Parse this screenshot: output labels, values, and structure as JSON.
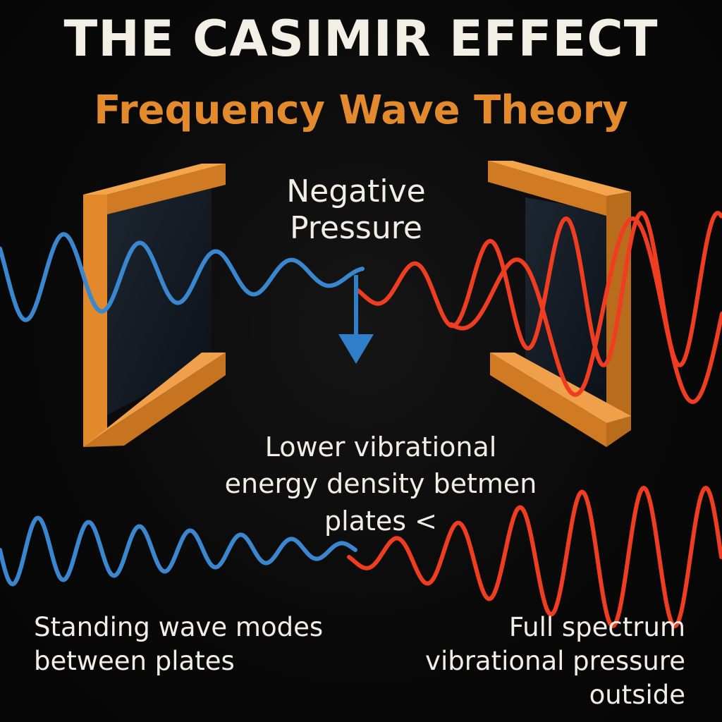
{
  "title": "THE CASIMIR EFFECT",
  "subtitle": "Frequency Wave Theory",
  "labels": {
    "negative_pressure": [
      "Negative",
      "Pressure"
    ],
    "energy_density": [
      "Lower vibrational",
      "energy density betmen",
      "plates <"
    ],
    "standing_waves": [
      "Standing wave modes",
      "between plates"
    ],
    "full_spectrum": [
      "Full spectrum",
      "vibrational pressure",
      "outside"
    ]
  },
  "colors": {
    "background": "#080808",
    "plate": "#e08a2a",
    "inner_wave": "#3a87d0",
    "outer_wave": "#ef3d22",
    "arrow": "#2f80c8",
    "title": "#f4efe4",
    "subtitle": "#e38a2c"
  },
  "icons": {
    "arrow": "down-arrow-icon"
  }
}
